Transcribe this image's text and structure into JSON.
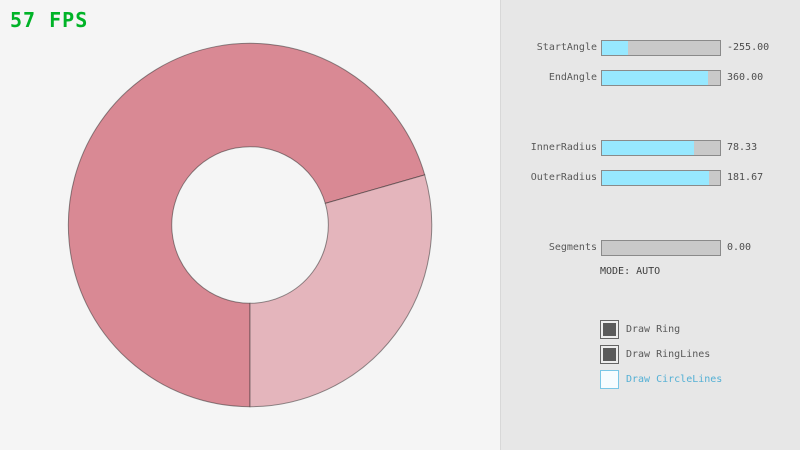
{
  "fps_label": "57 FPS",
  "ring": {
    "start_angle": -255.0,
    "end_angle": 360.0,
    "inner_radius": 78.33,
    "outer_radius": 181.67,
    "segments": 0.0,
    "mode": "AUTO"
  },
  "panel": {
    "sliders": [
      {
        "label": "StartAngle",
        "value": "-255.00",
        "fill_pct": 21.7
      },
      {
        "label": "EndAngle",
        "value": "360.00",
        "fill_pct": 90.0
      },
      {
        "label": "InnerRadius",
        "value": "78.33",
        "fill_pct": 78.3
      },
      {
        "label": "OuterRadius",
        "value": "181.67",
        "fill_pct": 90.8
      },
      {
        "label": "Segments",
        "value": "0.00",
        "fill_pct": 0
      }
    ],
    "mode_text": "MODE: AUTO",
    "checkboxes": [
      {
        "label": "Draw Ring",
        "checked": true
      },
      {
        "label": "Draw RingLines",
        "checked": true
      },
      {
        "label": "Draw CircleLines",
        "checked": false
      }
    ]
  },
  "colors": {
    "fps_green": "#00b327",
    "ring_dark": "#d98994",
    "ring_light": "#e4b5bc",
    "ring_outline": "rgba(40,40,40,0.5)",
    "slider_fill": "#97e8ff",
    "accent_blue": "#54b0d5"
  }
}
